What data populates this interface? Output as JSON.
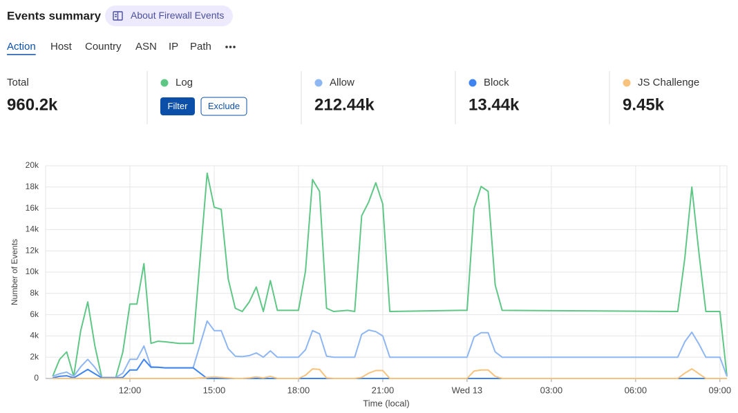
{
  "header": {
    "title": "Events summary",
    "link": "About Firewall Events"
  },
  "tabs": [
    "Action",
    "Host",
    "Country",
    "ASN",
    "IP",
    "Path"
  ],
  "summary": {
    "total_label": "Total",
    "total": "960.2k",
    "filter": "Filter",
    "exclude": "Exclude"
  },
  "chart_data": {
    "type": "line",
    "y_label": "Number of Events",
    "x_label": "Time (local)",
    "xlim": [
      9,
      33.25
    ],
    "ylim": [
      0,
      20000
    ],
    "yticks": [
      0,
      {
        "value": 2000,
        "label": "2k"
      },
      {
        "value": 4000,
        "label": "4k"
      },
      {
        "value": 6000,
        "label": "6k"
      },
      {
        "value": 8000,
        "label": "8k"
      },
      {
        "value": 10000,
        "label": "10k"
      },
      {
        "value": 12000,
        "label": "12k"
      },
      {
        "value": 14000,
        "label": "14k"
      },
      {
        "value": 16000,
        "label": "16k"
      },
      {
        "value": 18000,
        "label": "18k"
      },
      {
        "value": 20000,
        "label": "20k"
      }
    ],
    "xticks": [
      {
        "value": 12,
        "label": "12:00"
      },
      {
        "value": 15,
        "label": "15:00"
      },
      {
        "value": 18,
        "label": "18:00"
      },
      {
        "value": 21,
        "label": "21:00"
      },
      {
        "value": 24,
        "label": "Wed 13"
      },
      {
        "value": 27,
        "label": "03:00"
      },
      {
        "value": 30,
        "label": "06:00"
      },
      {
        "value": 33,
        "label": "09:00"
      }
    ],
    "grid": true,
    "x": [
      9.25,
      9.5,
      9.75,
      10,
      10.25,
      10.5,
      10.75,
      11,
      11.5,
      11.75,
      12,
      12.25,
      12.5,
      12.75,
      13,
      13.25,
      13.75,
      14.25,
      14.75,
      15,
      15.25,
      15.5,
      15.75,
      16,
      16.25,
      16.5,
      16.75,
      17,
      17.25,
      18,
      18.25,
      18.5,
      18.75,
      19,
      19.25,
      19.75,
      20,
      20.25,
      20.5,
      20.75,
      21,
      21.25,
      23.75,
      24,
      24.25,
      24.5,
      24.75,
      25,
      25.25,
      31.5,
      31.75,
      32,
      32.25,
      32.5,
      33,
      33.25
    ],
    "series": [
      {
        "name": "Log",
        "color": "#5fc785",
        "values": [
          200,
          1800,
          2500,
          200,
          4500,
          7200,
          3100,
          100,
          100,
          2500,
          7000,
          7000,
          10800,
          3300,
          3500,
          3450,
          3300,
          3300,
          19300,
          16100,
          15900,
          9350,
          6600,
          6300,
          7200,
          8600,
          6300,
          9200,
          6400,
          6400,
          10100,
          18700,
          17600,
          6600,
          6300,
          6400,
          6300,
          15300,
          16600,
          18400,
          16400,
          6300,
          6400,
          6400,
          16000,
          18050,
          17600,
          8800,
          6400,
          6300,
          11300,
          18000,
          11900,
          6300,
          6300,
          200
        ]
      },
      {
        "name": "Allow",
        "color": "#8db6f2",
        "total": "212.44k",
        "values": [
          200,
          450,
          600,
          200,
          1100,
          1800,
          1050,
          100,
          100,
          500,
          1800,
          1800,
          3050,
          1100,
          1050,
          1000,
          1000,
          1000,
          5400,
          4500,
          4500,
          2800,
          2100,
          2050,
          2150,
          2400,
          2000,
          2600,
          2000,
          2000,
          2700,
          4500,
          4200,
          2100,
          2000,
          2000,
          2000,
          4150,
          4550,
          4400,
          4000,
          2000,
          2000,
          2000,
          3900,
          4300,
          4300,
          2500,
          2000,
          2000,
          3450,
          4350,
          3250,
          2000,
          2000,
          200
        ]
      },
      {
        "name": "Block",
        "color": "#3e84f0",
        "total": "13.44k",
        "values": [
          50,
          200,
          250,
          50,
          450,
          850,
          450,
          50,
          50,
          100,
          800,
          800,
          1800,
          1050,
          1050,
          1000,
          1000,
          1000,
          0,
          0,
          0,
          0,
          0,
          0,
          0,
          0,
          0,
          0,
          0,
          0,
          0,
          0,
          0,
          0,
          0,
          0,
          0,
          0,
          0,
          0,
          0,
          0,
          0,
          0,
          0,
          0,
          0,
          0,
          0,
          0,
          0,
          0,
          0,
          0,
          0,
          0
        ]
      },
      {
        "name": "JS Challenge",
        "color": "#f6c27c",
        "total": "9.45k",
        "values": [
          0,
          0,
          0,
          0,
          0,
          0,
          0,
          0,
          0,
          0,
          0,
          0,
          0,
          0,
          0,
          0,
          0,
          0,
          100,
          150,
          100,
          50,
          0,
          0,
          50,
          150,
          50,
          200,
          0,
          0,
          300,
          900,
          850,
          50,
          0,
          0,
          0,
          100,
          500,
          750,
          750,
          0,
          0,
          0,
          700,
          800,
          800,
          200,
          0,
          0,
          500,
          900,
          450,
          0,
          0,
          0
        ]
      }
    ]
  }
}
